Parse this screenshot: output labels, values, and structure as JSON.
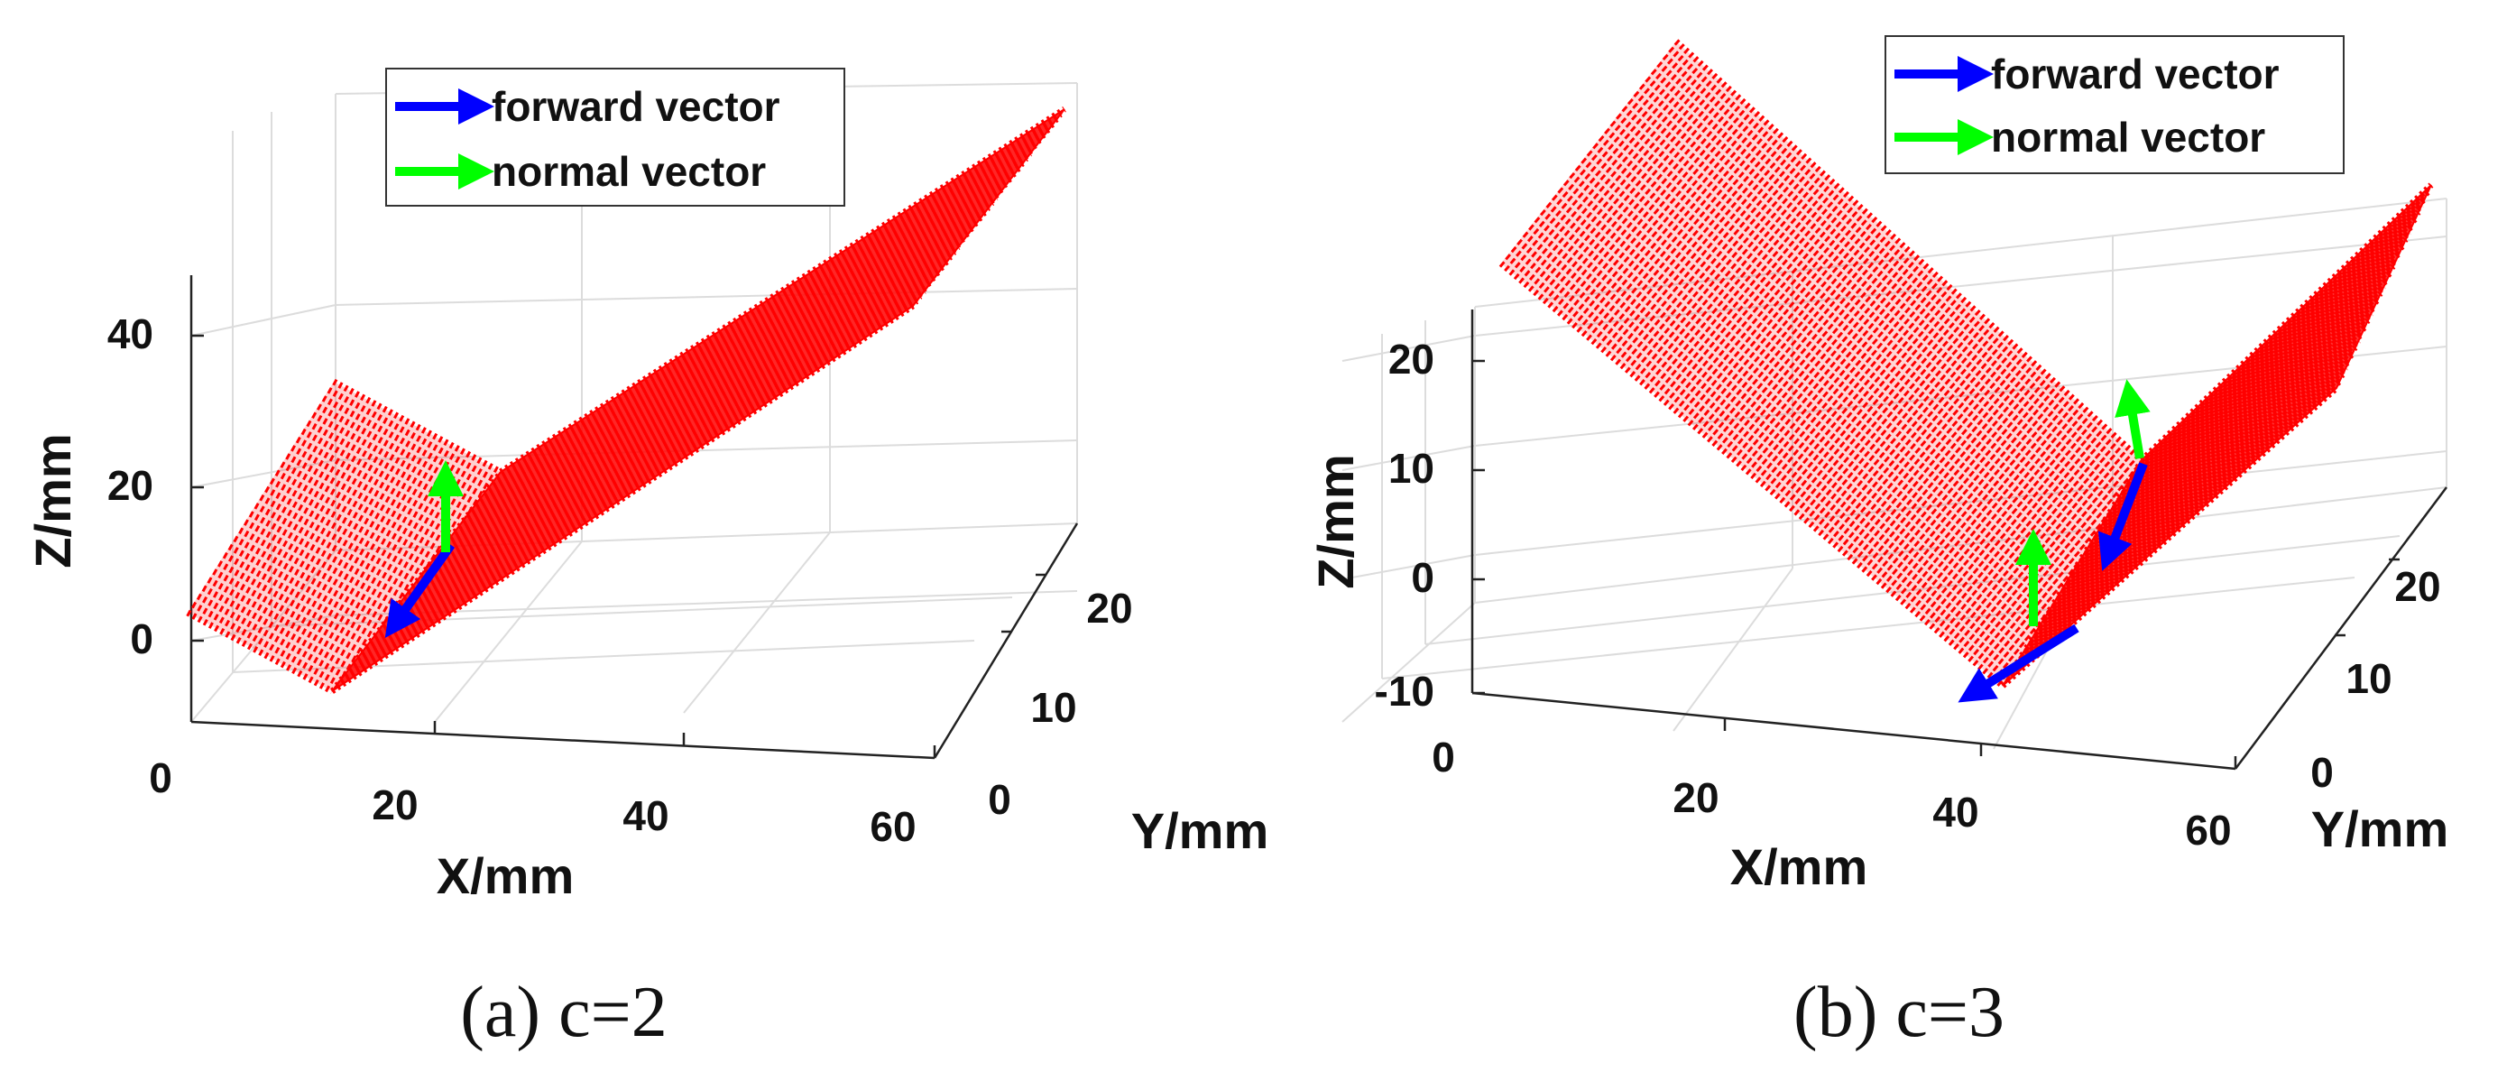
{
  "chart_data": [
    {
      "type": "surface3d",
      "caption": "(a) c=2",
      "xlabel": "X/mm",
      "ylabel": "Y/mm",
      "zlabel": "Z/mm",
      "xticks": [
        "0",
        "20",
        "40",
        "60"
      ],
      "yticks": [
        "0",
        "10",
        "20"
      ],
      "zticks": [
        "0",
        "20",
        "40"
      ],
      "xlim": [
        0,
        60
      ],
      "ylim": [
        0,
        25
      ],
      "zlim": [
        -8,
        48
      ],
      "grid": true,
      "legend_position": "top-center",
      "legend": [
        {
          "label": "forward vector",
          "color": "#0000ff"
        },
        {
          "label": "normal vector",
          "color": "#00ff00"
        }
      ],
      "surface_color": "#ff0000",
      "surfaces": [
        {
          "name": "short face",
          "corners": [
            [
              0,
              0,
              5
            ],
            [
              10,
              0,
              -5
            ],
            [
              10,
              20,
              -5
            ],
            [
              0,
              20,
              5
            ]
          ]
        },
        {
          "name": "long face",
          "corners": [
            [
              10,
              0,
              -5
            ],
            [
              60,
              0,
              48
            ],
            [
              60,
              20,
              48
            ],
            [
              10,
              20,
              -5
            ]
          ]
        }
      ],
      "vectors": [
        {
          "kind": "forward",
          "from": [
            16,
            5,
            9
          ],
          "to": [
            12,
            5,
            2
          ]
        },
        {
          "kind": "normal",
          "from": [
            16,
            5,
            9
          ],
          "to": [
            16,
            5,
            21
          ]
        }
      ]
    },
    {
      "type": "surface3d",
      "caption": "(b) c=3",
      "xlabel": "X/mm",
      "ylabel": "Y/mm",
      "zlabel": "Z/mm",
      "xticks": [
        "0",
        "20",
        "40",
        "60"
      ],
      "yticks": [
        "0",
        "10",
        "20"
      ],
      "zticks": [
        "-10",
        "0",
        "10",
        "20"
      ],
      "xlim": [
        0,
        60
      ],
      "ylim": [
        0,
        25
      ],
      "zlim": [
        -10,
        26
      ],
      "grid": true,
      "legend_position": "top-right",
      "legend": [
        {
          "label": "forward vector",
          "color": "#0000ff"
        },
        {
          "label": "normal vector",
          "color": "#00ff00"
        }
      ],
      "surface_color": "#ff0000",
      "surfaces": [
        {
          "name": "left face",
          "corners": [
            [
              0,
              0,
              0
            ],
            [
              0,
              20,
              0
            ],
            [
              38,
              20,
              -10
            ],
            [
              38,
              0,
              -10
            ]
          ]
        },
        {
          "name": "right face",
          "corners": [
            [
              38,
              0,
              -10
            ],
            [
              38,
              20,
              -10
            ],
            [
              60,
              20,
              25
            ],
            [
              60,
              0,
              25
            ]
          ]
        }
      ],
      "vectors": [
        {
          "kind": "forward",
          "from": [
            41,
            4,
            -3
          ],
          "to": [
            36,
            4,
            -7
          ]
        },
        {
          "kind": "normal",
          "from": [
            41,
            4,
            -3
          ],
          "to": [
            41,
            4,
            5
          ]
        },
        {
          "kind": "forward",
          "from": [
            44,
            17,
            9
          ],
          "to": [
            42,
            17,
            4
          ]
        },
        {
          "kind": "normal",
          "from": [
            44,
            17,
            9
          ],
          "to": [
            44,
            17,
            17
          ]
        }
      ]
    }
  ]
}
